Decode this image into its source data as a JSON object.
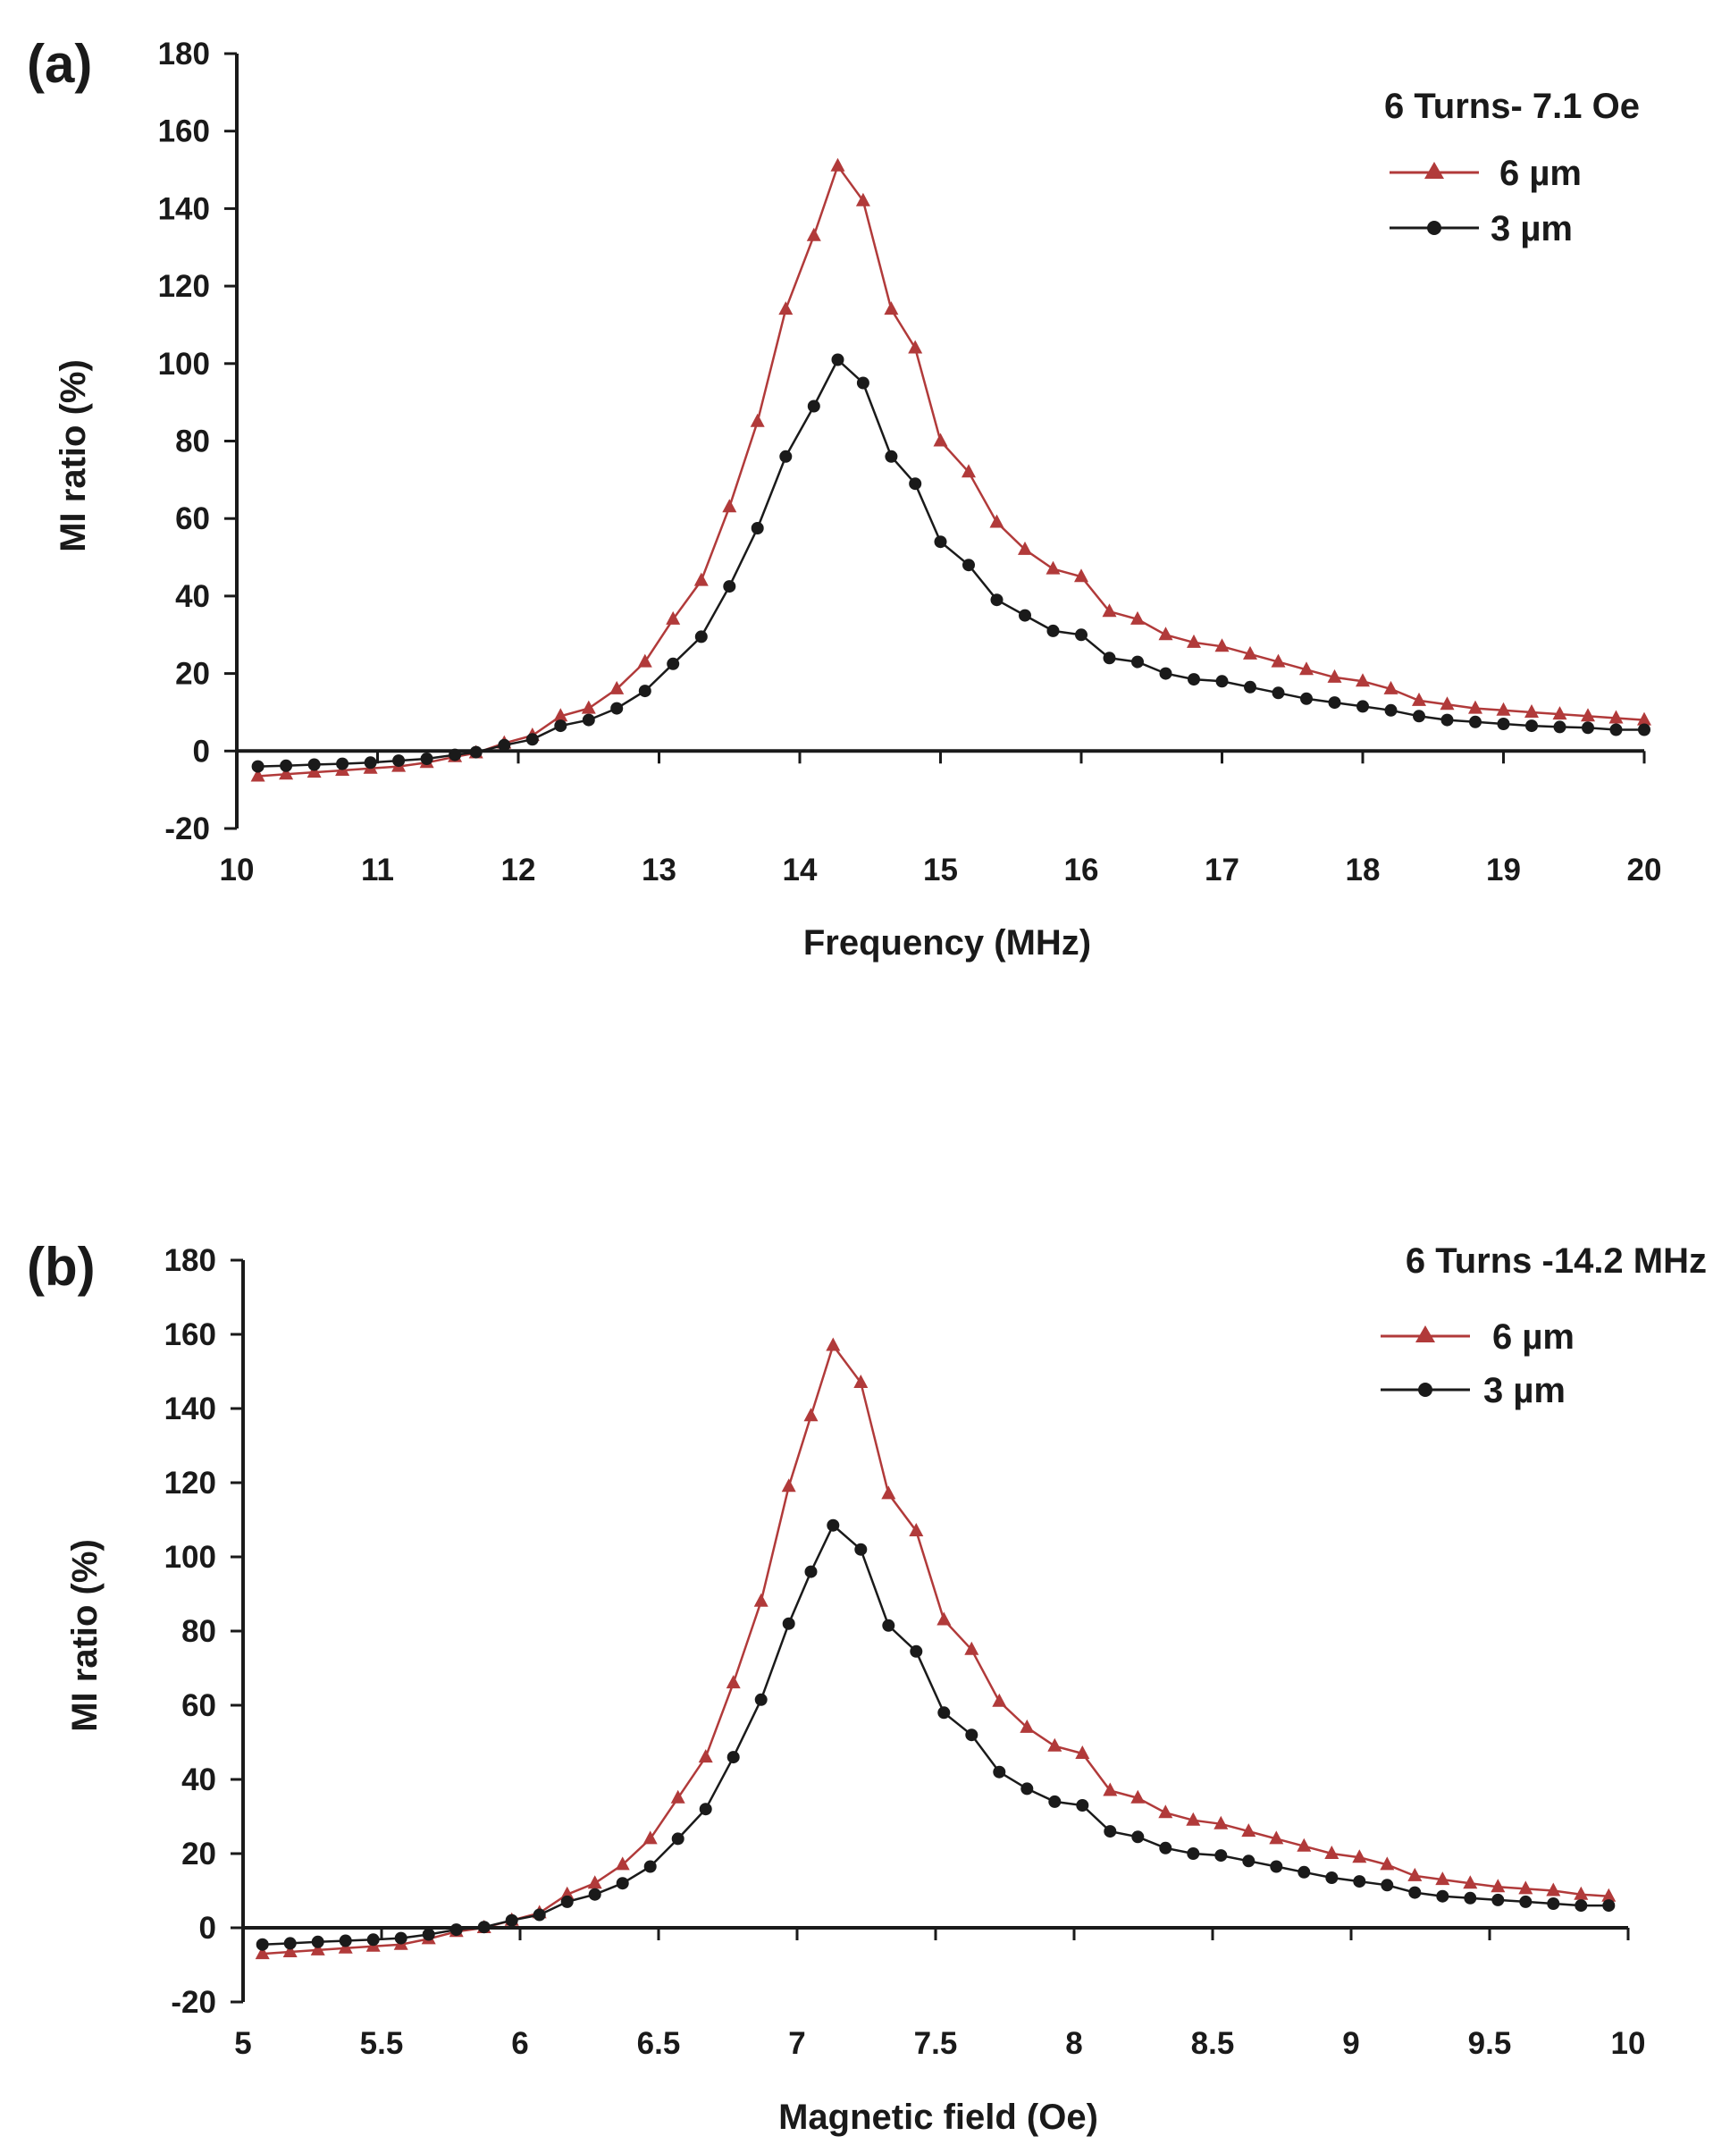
{
  "chart_data": [
    {
      "type": "line",
      "panel_label": "(a)",
      "title": "6 Turns- 7.1 Oe",
      "xlabel": "Frequency (MHz)",
      "ylabel": "MI ratio (%)",
      "xlim": [
        10,
        20
      ],
      "ylim": [
        -20,
        180
      ],
      "xticks": [
        "10",
        "11",
        "12",
        "13",
        "14",
        "15",
        "16",
        "17",
        "18",
        "19",
        "20"
      ],
      "yticks": [
        "-20",
        "0",
        "20",
        "40",
        "60",
        "80",
        "100",
        "120",
        "140",
        "160",
        "180"
      ],
      "legend_position": "top-right",
      "x": [
        10.15,
        10.35,
        10.55,
        10.75,
        10.95,
        11.15,
        11.35,
        11.55,
        11.7,
        11.9,
        12.1,
        12.3,
        12.5,
        12.7,
        12.9,
        13.1,
        13.3,
        13.5,
        13.7,
        13.9,
        14.1,
        14.27,
        14.45,
        14.65,
        14.82,
        15.0,
        15.2,
        15.4,
        15.6,
        15.8,
        16.0,
        16.2,
        16.4,
        16.6,
        16.8,
        17.0,
        17.2,
        17.4,
        17.6,
        17.8,
        18.0,
        18.2,
        18.4,
        18.6,
        18.8,
        19.0,
        19.2,
        19.4,
        19.6,
        19.8,
        20.0
      ],
      "series": [
        {
          "name": "6 µm",
          "color": "#b13a3a",
          "marker": "triangle",
          "values": [
            -6.5,
            -6,
            -5.5,
            -5,
            -4.5,
            -4,
            -3,
            -1.5,
            -0.5,
            2,
            4,
            9,
            11,
            16,
            23,
            34,
            44,
            63,
            85,
            114,
            133,
            151,
            142,
            114,
            104,
            80,
            72,
            59,
            52,
            47,
            45,
            36,
            34,
            30,
            28,
            27,
            25,
            23,
            21,
            19,
            18,
            16,
            13,
            12,
            11,
            10.5,
            10,
            9.5,
            9,
            8.5,
            8
          ]
        },
        {
          "name": "3 µm",
          "color": "#1a1a1a",
          "marker": "circle",
          "values": [
            -4,
            -3.8,
            -3.5,
            -3.3,
            -3,
            -2.5,
            -2,
            -1,
            -0.3,
            1.5,
            3,
            6.5,
            8,
            11,
            15.5,
            22.5,
            29.5,
            42.5,
            57.5,
            76,
            89,
            101,
            95,
            76,
            69,
            54,
            48,
            39,
            35,
            31,
            30,
            24,
            23,
            20,
            18.5,
            18,
            16.5,
            15,
            13.5,
            12.5,
            11.5,
            10.5,
            9,
            8,
            7.5,
            7,
            6.5,
            6.2,
            6,
            5.5,
            5.5
          ]
        }
      ]
    },
    {
      "type": "line",
      "panel_label": "(b)",
      "title": "6 Turns -14.2 MHz",
      "xlabel": "Magnetic field  (Oe)",
      "ylabel": "MI ratio (%)",
      "xlim": [
        5,
        10
      ],
      "ylim": [
        -20,
        180
      ],
      "xticks": [
        "5",
        "5.5",
        "6",
        "6.5",
        "7",
        "7.5",
        "8",
        "8.5",
        "9",
        "9.5",
        "10"
      ],
      "yticks": [
        "-20",
        "0",
        "20",
        "40",
        "60",
        "80",
        "100",
        "120",
        "140",
        "160",
        "180"
      ],
      "legend_position": "top-right",
      "x": [
        5.07,
        5.17,
        5.27,
        5.37,
        5.47,
        5.57,
        5.67,
        5.77,
        5.87,
        5.97,
        6.07,
        6.17,
        6.27,
        6.37,
        6.47,
        6.57,
        6.67,
        6.77,
        6.87,
        6.97,
        7.05,
        7.13,
        7.23,
        7.33,
        7.43,
        7.53,
        7.63,
        7.73,
        7.83,
        7.93,
        8.03,
        8.13,
        8.23,
        8.33,
        8.43,
        8.53,
        8.63,
        8.73,
        8.83,
        8.93,
        9.03,
        9.13,
        9.23,
        9.33,
        9.43,
        9.53,
        9.63,
        9.73,
        9.83,
        9.93
      ],
      "series": [
        {
          "name": "6 µm",
          "color": "#b13a3a",
          "marker": "triangle",
          "values": [
            -7,
            -6.5,
            -6,
            -5.5,
            -5,
            -4.5,
            -3,
            -1,
            0,
            2,
            4,
            9,
            12,
            17,
            24,
            35,
            46,
            66,
            88,
            119,
            138,
            157,
            147,
            117,
            107,
            83,
            75,
            61,
            54,
            49,
            47,
            37,
            35,
            31,
            29,
            28,
            26,
            24,
            22,
            20,
            19,
            17,
            14,
            13,
            12,
            11,
            10.5,
            10,
            9,
            8.5
          ]
        },
        {
          "name": "3 µm",
          "color": "#1a1a1a",
          "marker": "circle",
          "values": [
            -4.5,
            -4.2,
            -3.8,
            -3.5,
            -3.2,
            -2.8,
            -1.8,
            -0.5,
            0.2,
            2,
            3.5,
            7,
            9,
            12,
            16.5,
            24,
            32,
            46,
            61.5,
            82,
            96,
            108.5,
            102,
            81.5,
            74.5,
            58,
            52,
            42,
            37.5,
            34,
            33,
            26,
            24.5,
            21.5,
            20,
            19.5,
            18,
            16.5,
            15,
            13.5,
            12.5,
            11.5,
            9.5,
            8.5,
            8,
            7.5,
            7,
            6.5,
            6,
            6
          ]
        }
      ]
    }
  ]
}
